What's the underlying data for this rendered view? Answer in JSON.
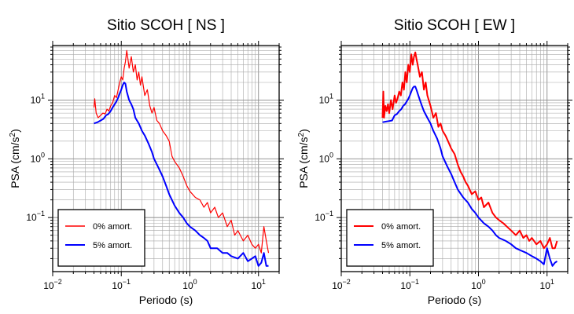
{
  "figure": {
    "charts": [
      {
        "title": "Sitio SCOH [ NS ]",
        "xlabel": "Periodo (s)",
        "ylabel_main": "PSA (cm/s",
        "ylabel_sup": "2",
        "ylabel_end": ")",
        "legend": [
          "0% amort.",
          "5% amort."
        ]
      },
      {
        "title": "Sitio SCOH [ EW ]",
        "xlabel": "Periodo (s)",
        "ylabel_main": "PSA (cm/s",
        "ylabel_sup": "2",
        "ylabel_end": ")",
        "legend": [
          "0% amort.",
          "5% amort."
        ]
      }
    ]
  },
  "chart_data": [
    {
      "type": "line",
      "title": "Sitio SCOH [ NS ]",
      "xlabel": "Periodo (s)",
      "ylabel": "PSA (cm/s²)",
      "xscale": "log",
      "yscale": "log",
      "xlim": [
        0.01,
        20
      ],
      "ylim": [
        0.012,
        85
      ],
      "grid": true,
      "legend_position": "bottom-left",
      "xticks": [
        {
          "base": "10",
          "exp": "−2"
        },
        {
          "base": "10",
          "exp": "−1"
        },
        {
          "base": "10",
          "exp": "0"
        },
        {
          "base": "10",
          "exp": "1"
        }
      ],
      "yticks": [
        {
          "base": "10",
          "exp": "−1",
          "value": 0.1
        },
        {
          "base": "10",
          "exp": "0",
          "value": 1
        },
        {
          "base": "10",
          "exp": "1",
          "value": 10
        }
      ],
      "series": [
        {
          "name": "0% amort.",
          "color": "#ff0000",
          "stroke_width": 1.2,
          "x": [
            0.04,
            0.041,
            0.043,
            0.046,
            0.05,
            0.054,
            0.058,
            0.062,
            0.066,
            0.07,
            0.075,
            0.08,
            0.085,
            0.09,
            0.095,
            0.1,
            0.105,
            0.11,
            0.115,
            0.12,
            0.125,
            0.13,
            0.14,
            0.15,
            0.16,
            0.17,
            0.18,
            0.19,
            0.2,
            0.22,
            0.24,
            0.26,
            0.28,
            0.3,
            0.33,
            0.36,
            0.4,
            0.45,
            0.5,
            0.55,
            0.6,
            0.7,
            0.8,
            0.9,
            1.0,
            1.2,
            1.4,
            1.6,
            1.8,
            2.0,
            2.3,
            2.6,
            3.0,
            3.5,
            4.0,
            4.5,
            5.0,
            6.0,
            7.0,
            8.0,
            9.0,
            10.0,
            11.0,
            12.0,
            13.0,
            14.0
          ],
          "y": [
            7.5,
            10.5,
            6.0,
            5.0,
            5.5,
            6.0,
            5.8,
            7.0,
            6.5,
            8.0,
            9.0,
            12.0,
            11.0,
            15.0,
            20.0,
            25.0,
            22.0,
            35.0,
            45.0,
            70.0,
            50.0,
            35.0,
            55.0,
            30.0,
            40.0,
            22.0,
            30.0,
            18.0,
            25.0,
            12.0,
            15.0,
            8.0,
            6.0,
            7.5,
            4.5,
            4.0,
            3.0,
            2.5,
            2.0,
            1.1,
            0.9,
            0.7,
            0.5,
            0.35,
            0.28,
            0.22,
            0.2,
            0.15,
            0.18,
            0.12,
            0.15,
            0.1,
            0.12,
            0.07,
            0.09,
            0.05,
            0.06,
            0.04,
            0.05,
            0.035,
            0.03,
            0.035,
            0.025,
            0.07,
            0.04,
            0.025
          ]
        },
        {
          "name": "5% amort.",
          "color": "#0000ff",
          "stroke_width": 2.0,
          "x": [
            0.04,
            0.045,
            0.05,
            0.055,
            0.06,
            0.065,
            0.07,
            0.075,
            0.08,
            0.085,
            0.09,
            0.095,
            0.1,
            0.105,
            0.11,
            0.115,
            0.12,
            0.13,
            0.14,
            0.15,
            0.16,
            0.18,
            0.2,
            0.22,
            0.25,
            0.28,
            0.3,
            0.35,
            0.4,
            0.45,
            0.5,
            0.6,
            0.7,
            0.8,
            0.9,
            1.0,
            1.2,
            1.4,
            1.6,
            1.8,
            2.0,
            2.5,
            3.0,
            3.5,
            4.0,
            5.0,
            6.0,
            7.0,
            8.0,
            9.0,
            10.0,
            11.0,
            12.0,
            13.0,
            14.0
          ],
          "y": [
            4.0,
            4.2,
            4.5,
            4.8,
            5.5,
            5.8,
            6.5,
            7.5,
            8.5,
            9.5,
            11.0,
            13.0,
            15.0,
            18.0,
            20.0,
            19.0,
            14.0,
            10.0,
            8.5,
            7.0,
            5.0,
            4.0,
            3.0,
            2.5,
            1.8,
            1.3,
            1.0,
            0.7,
            0.5,
            0.35,
            0.25,
            0.16,
            0.12,
            0.1,
            0.08,
            0.07,
            0.06,
            0.05,
            0.045,
            0.04,
            0.03,
            0.03,
            0.025,
            0.025,
            0.022,
            0.02,
            0.025,
            0.018,
            0.02,
            0.022,
            0.015,
            0.017,
            0.025,
            0.015,
            0.015
          ]
        }
      ]
    },
    {
      "type": "line",
      "title": "Sitio SCOH [ EW ]",
      "xlabel": "Periodo (s)",
      "ylabel": "PSA (cm/s²)",
      "xscale": "log",
      "yscale": "log",
      "xlim": [
        0.01,
        20
      ],
      "ylim": [
        0.012,
        85
      ],
      "grid": true,
      "legend_position": "bottom-left",
      "xticks": [
        {
          "base": "10",
          "exp": "−2"
        },
        {
          "base": "10",
          "exp": "−1"
        },
        {
          "base": "10",
          "exp": "0"
        },
        {
          "base": "10",
          "exp": "1"
        }
      ],
      "yticks": [
        {
          "base": "10",
          "exp": "−1",
          "value": 0.1
        },
        {
          "base": "10",
          "exp": "0",
          "value": 1
        },
        {
          "base": "10",
          "exp": "1",
          "value": 10
        }
      ],
      "series": [
        {
          "name": "0% amort.",
          "color": "#ff0000",
          "stroke_width": 2.0,
          "x": [
            0.04,
            0.041,
            0.042,
            0.044,
            0.046,
            0.048,
            0.05,
            0.053,
            0.056,
            0.06,
            0.063,
            0.066,
            0.07,
            0.074,
            0.078,
            0.082,
            0.086,
            0.09,
            0.095,
            0.1,
            0.105,
            0.11,
            0.115,
            0.12,
            0.125,
            0.13,
            0.14,
            0.15,
            0.16,
            0.17,
            0.18,
            0.2,
            0.22,
            0.24,
            0.26,
            0.28,
            0.3,
            0.33,
            0.36,
            0.4,
            0.45,
            0.5,
            0.55,
            0.6,
            0.65,
            0.7,
            0.8,
            0.9,
            1.0,
            1.1,
            1.2,
            1.4,
            1.6,
            1.8,
            2.0,
            2.3,
            2.6,
            3.0,
            3.5,
            4.0,
            4.5,
            5.0,
            5.5,
            6.0,
            7.0,
            8.0,
            9.0,
            10.0,
            11.0,
            12.0,
            13.0,
            14.0
          ],
          "y": [
            5.0,
            14.0,
            5.0,
            8.0,
            6.5,
            8.5,
            6.0,
            10.0,
            7.0,
            12.0,
            9.0,
            10.5,
            14.0,
            12.0,
            20.0,
            15.0,
            30.0,
            20.0,
            40.0,
            30.0,
            60.0,
            40.0,
            55.0,
            65.0,
            50.0,
            40.0,
            25.0,
            30.0,
            15.0,
            20.0,
            12.0,
            8.0,
            5.0,
            6.0,
            3.5,
            4.0,
            3.0,
            2.5,
            2.0,
            1.5,
            1.2,
            0.8,
            0.6,
            0.5,
            0.4,
            0.35,
            0.25,
            0.28,
            0.2,
            0.22,
            0.15,
            0.18,
            0.12,
            0.1,
            0.09,
            0.08,
            0.07,
            0.06,
            0.05,
            0.06,
            0.045,
            0.05,
            0.04,
            0.045,
            0.035,
            0.04,
            0.03,
            0.035,
            0.045,
            0.03,
            0.03,
            0.04
          ]
        },
        {
          "name": "5% amort.",
          "color": "#0000ff",
          "stroke_width": 2.0,
          "x": [
            0.04,
            0.045,
            0.05,
            0.055,
            0.06,
            0.065,
            0.07,
            0.075,
            0.08,
            0.085,
            0.09,
            0.095,
            0.1,
            0.105,
            0.11,
            0.115,
            0.12,
            0.125,
            0.13,
            0.14,
            0.15,
            0.16,
            0.18,
            0.2,
            0.22,
            0.25,
            0.28,
            0.3,
            0.35,
            0.4,
            0.45,
            0.5,
            0.6,
            0.7,
            0.8,
            0.9,
            1.0,
            1.2,
            1.4,
            1.6,
            1.8,
            2.0,
            2.5,
            3.0,
            3.5,
            4.0,
            5.0,
            6.0,
            7.0,
            8.0,
            9.0,
            10.0,
            11.0,
            12.0,
            13.0,
            14.0
          ],
          "y": [
            4.2,
            4.3,
            4.4,
            4.5,
            5.5,
            5.8,
            6.5,
            7.0,
            8.0,
            8.5,
            9.5,
            10.5,
            12.0,
            14.0,
            16.0,
            17.0,
            17.0,
            15.0,
            13.0,
            10.0,
            8.0,
            6.5,
            5.0,
            4.0,
            3.0,
            2.2,
            1.5,
            1.1,
            0.75,
            0.55,
            0.4,
            0.3,
            0.22,
            0.18,
            0.14,
            0.12,
            0.1,
            0.08,
            0.07,
            0.06,
            0.05,
            0.045,
            0.04,
            0.035,
            0.03,
            0.028,
            0.025,
            0.022,
            0.02,
            0.018,
            0.016,
            0.03,
            0.02,
            0.015,
            0.017,
            0.018
          ]
        }
      ]
    }
  ]
}
